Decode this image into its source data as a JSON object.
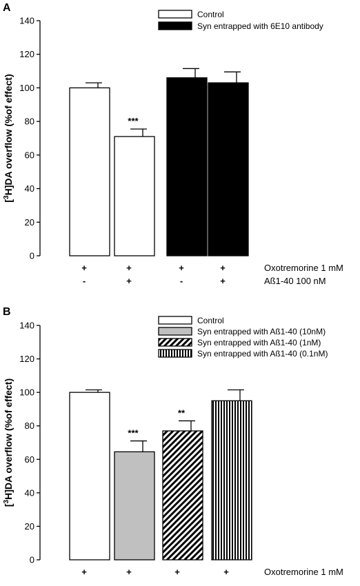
{
  "chart_data": [
    {
      "panel_label": "A",
      "type": "bar",
      "ylabel_prefix": "[",
      "ylabel_sup": "3",
      "ylabel_suffix": "H]DA overflow (%of effect)",
      "ylim": [
        0,
        140
      ],
      "yticks": [
        0,
        20,
        40,
        60,
        80,
        100,
        120,
        140
      ],
      "legend_position": "top-right",
      "series": [
        {
          "name": "Control",
          "fill": "white"
        },
        {
          "name": "Syn entrapped with 6E10 antibody",
          "fill": "black"
        }
      ],
      "bars": [
        {
          "series": 0,
          "value": 100,
          "error": 3,
          "annotation": ""
        },
        {
          "series": 0,
          "value": 71,
          "error": 4.5,
          "annotation": "***"
        },
        {
          "series": 1,
          "value": 106,
          "error": 5.5,
          "annotation": ""
        },
        {
          "series": 1,
          "value": 103,
          "error": 6.5,
          "annotation": ""
        }
      ],
      "conditions": [
        {
          "label": "Oxotremorine 1 mM",
          "values": [
            "+",
            "+",
            "+",
            "+"
          ]
        },
        {
          "label": "Aß1-40 100 nM",
          "values": [
            "-",
            "+",
            "-",
            "+"
          ]
        }
      ]
    },
    {
      "panel_label": "B",
      "type": "bar",
      "ylabel_prefix": "[",
      "ylabel_sup": "3",
      "ylabel_suffix": "H]DA overflow (%of effect)",
      "ylim": [
        0,
        140
      ],
      "yticks": [
        0,
        20,
        40,
        60,
        80,
        100,
        120,
        140
      ],
      "legend_position": "top-right",
      "series": [
        {
          "name": "Control",
          "fill": "white"
        },
        {
          "name": "Syn entrapped with Aß1-40 (10nM)",
          "fill": "gray"
        },
        {
          "name": "Syn entrapped with Aß1-40 (1nM)",
          "fill": "diagonal-hatch"
        },
        {
          "name": "Syn entrapped with Aß1-40 (0.1nM)",
          "fill": "vertical-hatch"
        }
      ],
      "bars": [
        {
          "series": 0,
          "value": 100,
          "error": 1.5,
          "annotation": ""
        },
        {
          "series": 1,
          "value": 64.5,
          "error": 6.5,
          "annotation": "***"
        },
        {
          "series": 2,
          "value": 77,
          "error": 6,
          "annotation": "**"
        },
        {
          "series": 3,
          "value": 95,
          "error": 6.5,
          "annotation": ""
        }
      ],
      "conditions": [
        {
          "label": "Oxotremorine 1 mM",
          "values": [
            "+",
            "+",
            "+",
            "+"
          ]
        }
      ]
    }
  ],
  "colors": {
    "axis": "#000000",
    "white_fill": "#ffffff",
    "black_fill": "#000000",
    "gray_fill": "#c0c0c0"
  }
}
